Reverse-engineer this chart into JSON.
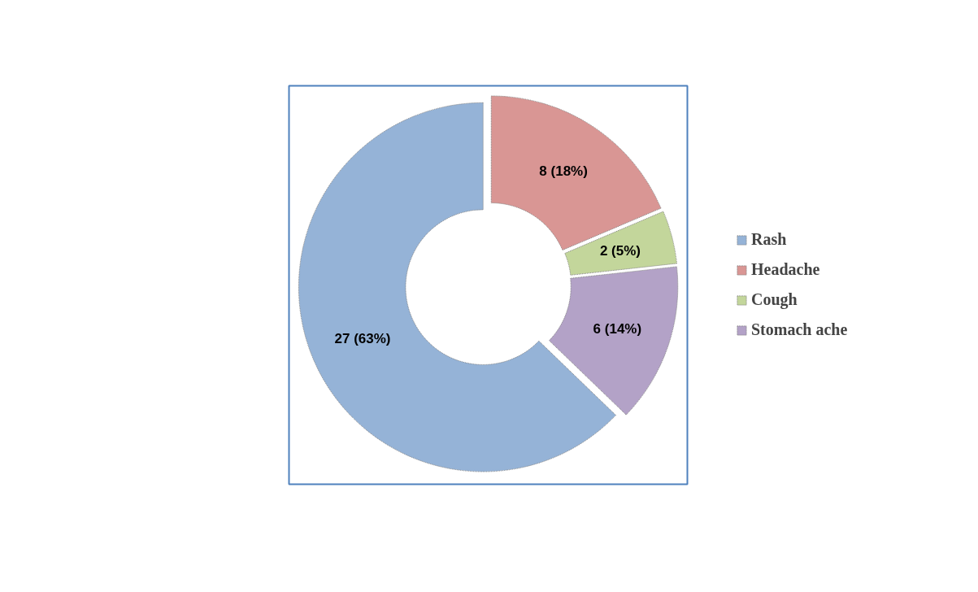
{
  "chart_data": {
    "type": "donut",
    "categories": [
      "Rash",
      "Headache",
      "Cough",
      "Stomach ache"
    ],
    "values": [
      27,
      8,
      2,
      6
    ],
    "value_labels": [
      "27 (63%)",
      "8 (18%)",
      "2 (5%)",
      "6 (14%)"
    ],
    "colors": [
      "#95b3d7",
      "#d99694",
      "#c3d69b",
      "#b3a2c7"
    ],
    "legend": "right"
  }
}
